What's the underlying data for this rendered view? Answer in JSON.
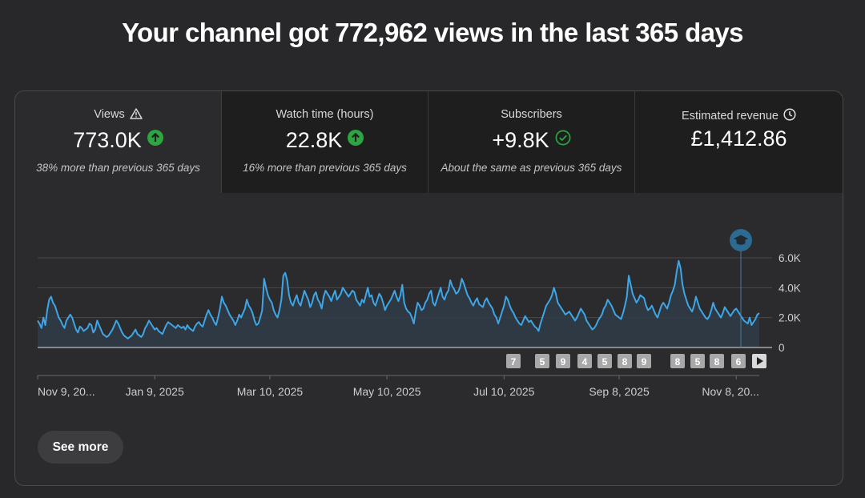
{
  "headline": "Your channel got 772,962 views in the last 365 days",
  "metrics": [
    {
      "title": "Views",
      "title_icon": "warning-icon",
      "value": "773.0K",
      "value_icon": "arrow-up-circle-icon",
      "subtext": "38% more than previous 365 days"
    },
    {
      "title": "Watch time (hours)",
      "value": "22.8K",
      "value_icon": "arrow-up-circle-icon",
      "subtext": "16% more than previous 365 days"
    },
    {
      "title": "Subscribers",
      "value": "+9.8K",
      "value_icon": "check-circle-icon",
      "subtext": "About the same as previous 365 days"
    },
    {
      "title": "Estimated revenue",
      "title_icon": "clock-icon",
      "value": "£1,412.86",
      "subtext": ""
    }
  ],
  "colors": {
    "line": "#3ea6e6",
    "up": "#2ba640",
    "marker": "#2c6a91"
  },
  "chart_data": {
    "type": "area",
    "y_ticks": [
      "6.0K",
      "4.0K",
      "2.0K",
      "0"
    ],
    "y_tick_values": [
      6000,
      4000,
      2000,
      0
    ],
    "ylim": [
      0,
      6000
    ],
    "x_tick_labels": [
      "Nov 9, 20...",
      "Jan 9, 2025",
      "Mar 10, 2025",
      "May 10, 2025",
      "Jul 10, 2025",
      "Sep 8, 2025",
      "Nov 8, 20..."
    ],
    "x_tick_days": [
      0,
      61,
      121,
      182,
      243,
      303,
      364
    ],
    "grid": true,
    "series": [
      {
        "values": [
          1800,
          1600,
          1300,
          2000,
          1500,
          2500,
          3200,
          3400,
          3000,
          2800,
          2400,
          2000,
          1800,
          1500,
          1300,
          1800,
          2000,
          2200,
          2000,
          1600,
          1200,
          1000,
          1400,
          1300,
          1100,
          1200,
          1300,
          1600,
          1500,
          1000,
          1200,
          1800,
          1500,
          1200,
          900,
          800,
          700,
          800,
          1000,
          1200,
          1500,
          1800,
          1600,
          1300,
          1000,
          800,
          700,
          600,
          700,
          800,
          1000,
          1200,
          900,
          800,
          700,
          900,
          1300,
          1500,
          1800,
          1600,
          1400,
          1200,
          1300,
          1100,
          1000,
          900,
          1200,
          1500,
          1700,
          1600,
          1500,
          1400,
          1300,
          1500,
          1400,
          1300,
          1400,
          1200,
          1500,
          1300,
          1200,
          1100,
          1400,
          1600,
          1700,
          1500,
          1400,
          1800,
          2200,
          2500,
          2200,
          2000,
          1700,
          1500,
          2000,
          2600,
          3400,
          3000,
          2800,
          2500,
          2200,
          2000,
          1800,
          1500,
          1800,
          2200,
          2000,
          2300,
          2600,
          3200,
          2800,
          2600,
          2300,
          1800,
          1500,
          1600,
          2000,
          2500,
          4600,
          4000,
          3500,
          3200,
          3000,
          2500,
          2200,
          2000,
          2500,
          3200,
          4800,
          5000,
          4500,
          3500,
          3000,
          2800,
          3200,
          3500,
          3000,
          2800,
          3300,
          3800,
          3500,
          3200,
          2700,
          3000,
          3500,
          3700,
          3200,
          3000,
          2600,
          3400,
          3800,
          3600,
          3400,
          3100,
          3500,
          3800,
          3200,
          3400,
          3600,
          4000,
          3800,
          3600,
          3400,
          3600,
          3800,
          3700,
          3200,
          3000,
          2800,
          3200,
          3000,
          3500,
          4000,
          3400,
          3500,
          3000,
          2800,
          3200,
          3600,
          3400,
          3000,
          2500,
          2800,
          3000,
          3200,
          3500,
          3800,
          3400,
          3100,
          3500,
          4200,
          3000,
          2600,
          2400,
          2300,
          2000,
          1600,
          2400,
          3000,
          2800,
          2500,
          2600,
          3000,
          3200,
          3600,
          3800,
          3000,
          2800,
          3200,
          3600,
          4000,
          3400,
          3200,
          3600,
          3800,
          4500,
          4100,
          3900,
          3600,
          3700,
          4000,
          4600,
          4300,
          3900,
          3500,
          3300,
          3000,
          2800,
          3100,
          3300,
          2900,
          2800,
          2700,
          3100,
          3300,
          3000,
          2800,
          2600,
          2200,
          2000,
          1600,
          2000,
          2400,
          2800,
          3400,
          3200,
          2800,
          2500,
          2300,
          2000,
          1800,
          1600,
          1500,
          1800,
          2100,
          1900,
          1700,
          1800,
          1600,
          1400,
          1300,
          1100,
          1600,
          2000,
          2400,
          2800,
          3000,
          3200,
          3500,
          4000,
          3600,
          3000,
          2800,
          2600,
          2400,
          2200,
          2300,
          2400,
          2200,
          2000,
          1800,
          2000,
          2300,
          2600,
          2400,
          2200,
          1800,
          1600,
          1400,
          1200,
          1300,
          1500,
          1800,
          2000,
          2200,
          2600,
          2800,
          3200,
          3000,
          2800,
          2500,
          2200,
          2100,
          2000,
          1900,
          2300,
          2800,
          3400,
          4800,
          4200,
          3600,
          3300,
          3000,
          3200,
          3500,
          3400,
          3300,
          2800,
          2500,
          2600,
          2800,
          2500,
          2200,
          2000,
          2400,
          2800,
          3000,
          2800,
          2600,
          3000,
          3500,
          3800,
          4200,
          5100,
          5800,
          5300,
          4200,
          3600,
          3200,
          2800,
          2600,
          2400,
          2800,
          3400,
          3000,
          2600,
          2400,
          2200,
          2000,
          1900,
          2100,
          2500,
          3000,
          2600,
          2400,
          2200,
          2000,
          2300,
          2700,
          2500,
          2300,
          2100,
          2300,
          2500,
          2600,
          2400,
          2200,
          2000,
          1800,
          1700,
          1600,
          2000,
          1500,
          1700,
          1900,
          2200,
          2300
        ]
      }
    ],
    "annotation_markers": [
      "7",
      "5",
      "9",
      "4",
      "5",
      "8",
      "9",
      "8",
      "5",
      "8",
      "6"
    ]
  },
  "see_more_label": "See more"
}
